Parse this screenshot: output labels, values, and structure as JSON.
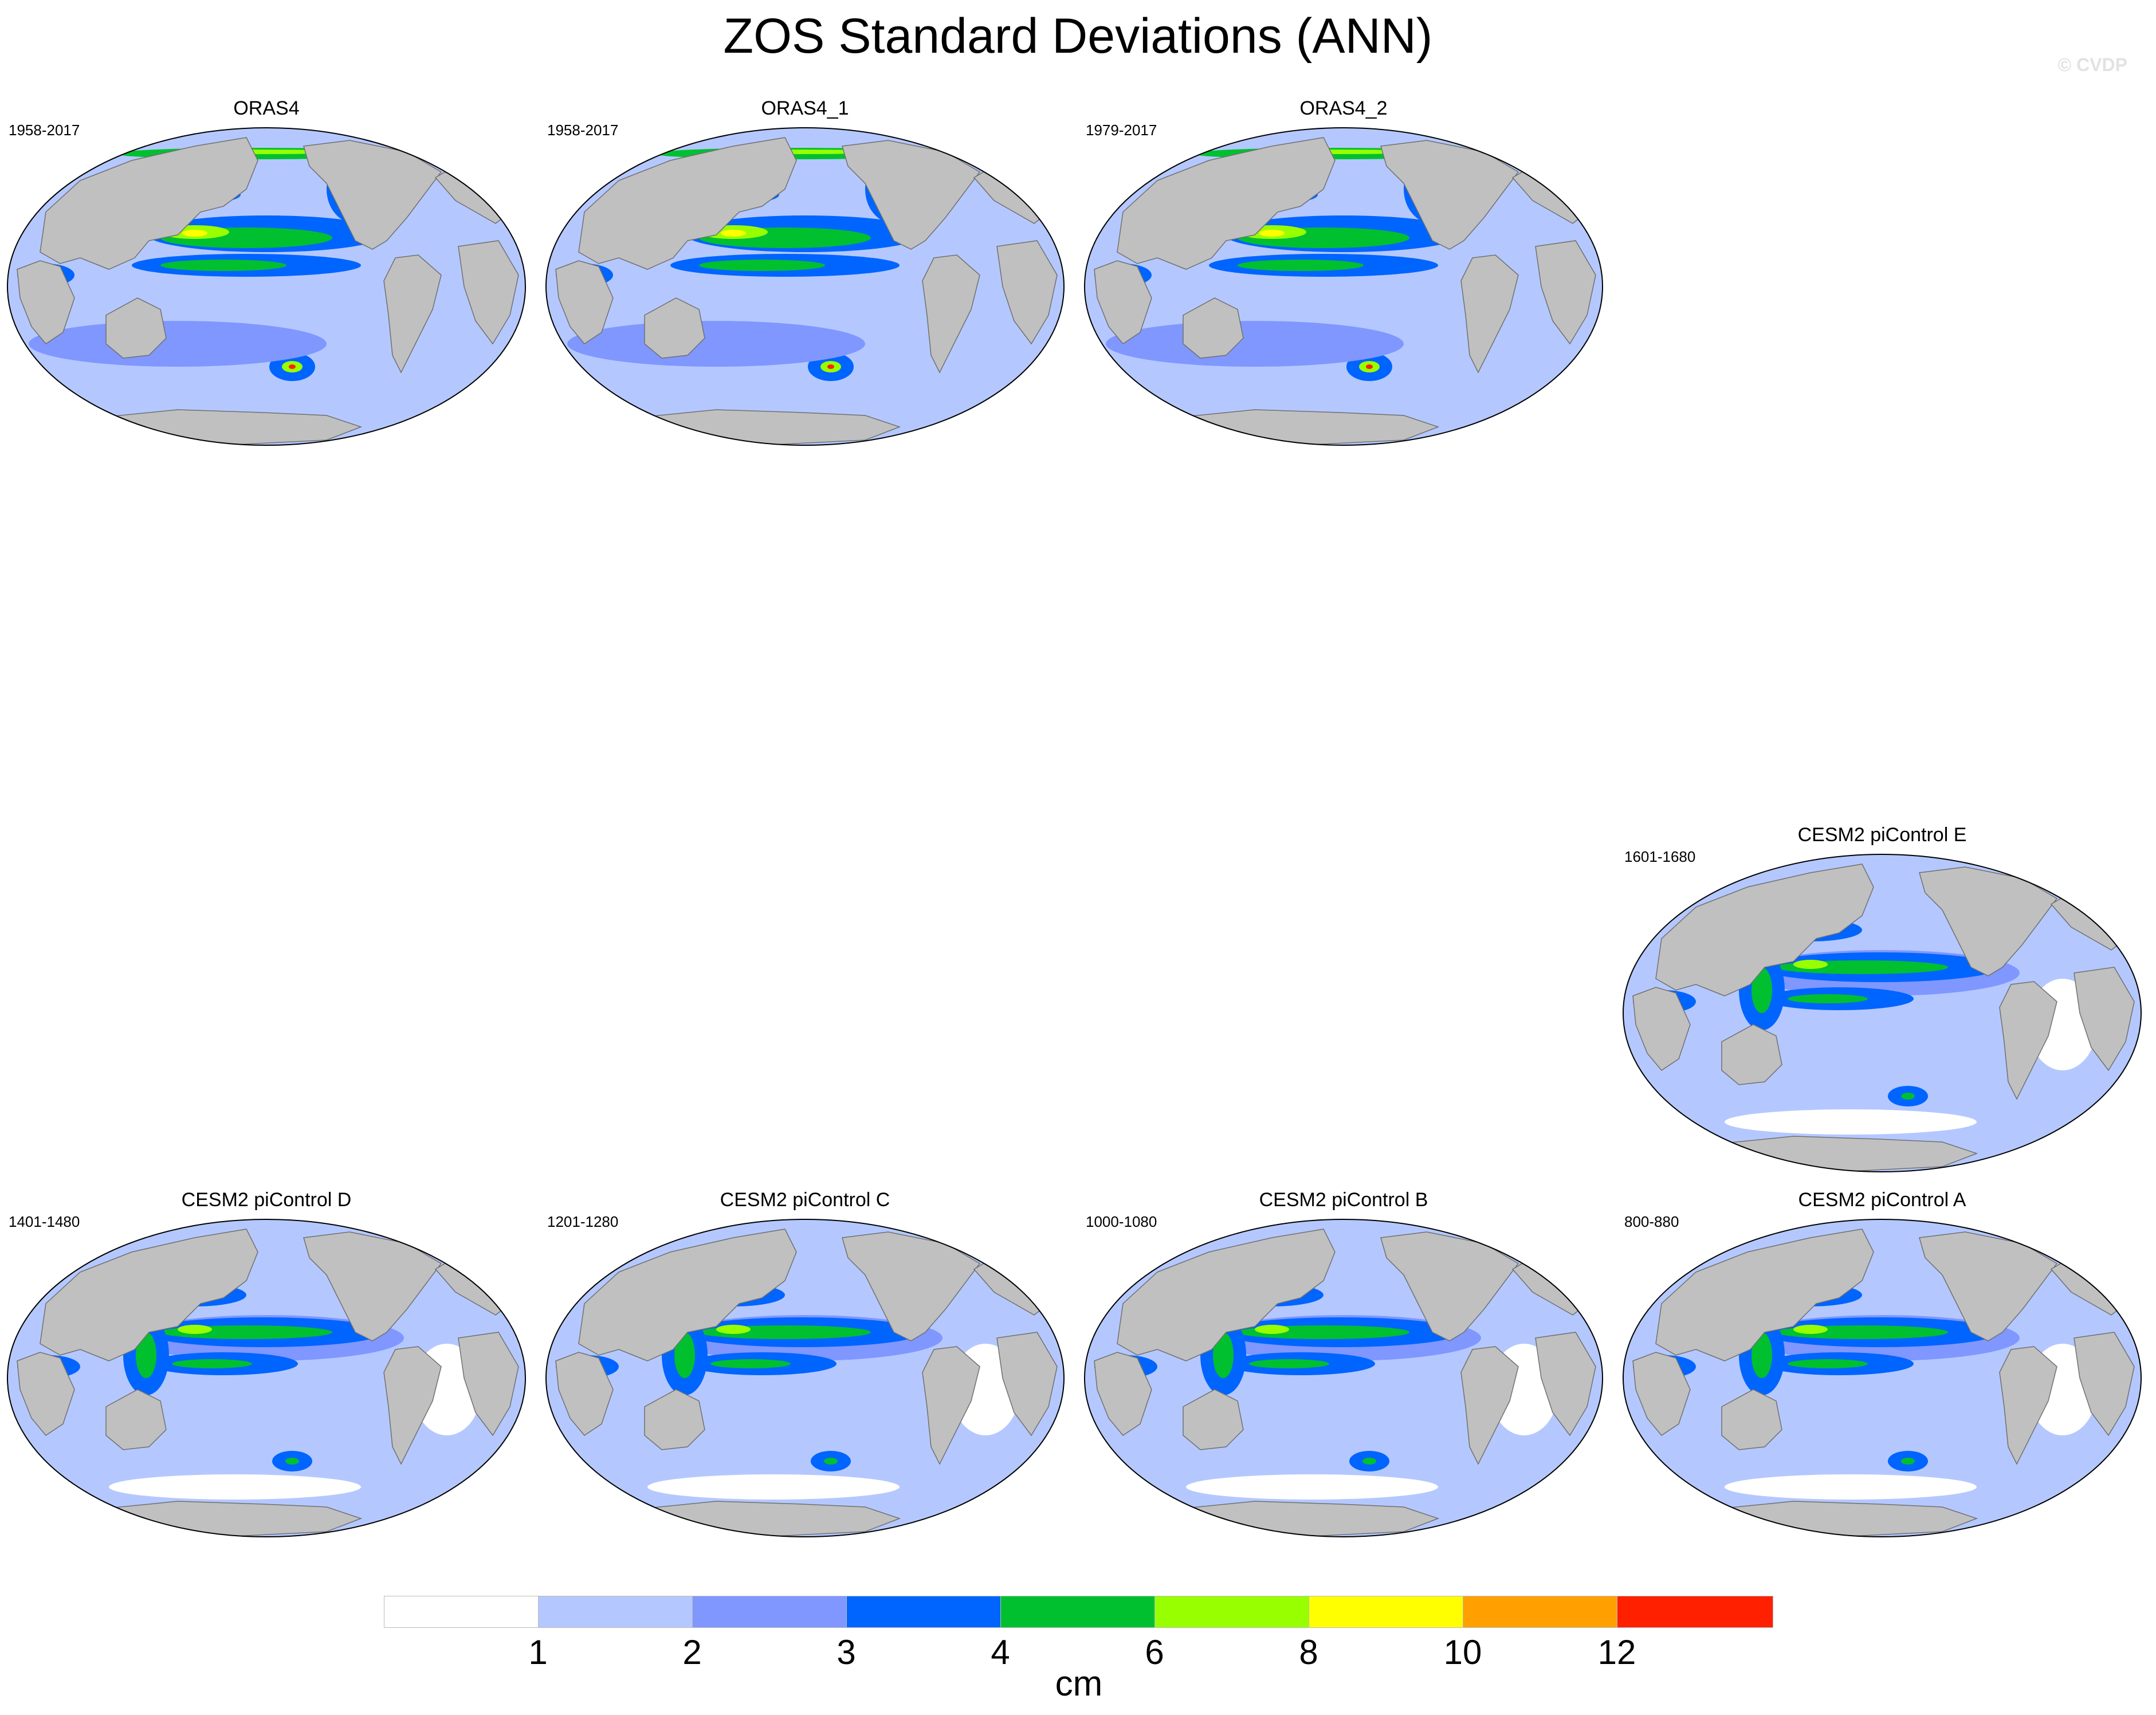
{
  "figure": {
    "title": "ZOS Standard Deviations (ANN)",
    "watermark": "© CVDP"
  },
  "colors": {
    "land": "#c0c0c0",
    "ocean_base": "#b4c8ff"
  },
  "panels": [
    {
      "title": "ORAS4",
      "period": "1958-2017",
      "variant": "obs"
    },
    {
      "title": "ORAS4_1",
      "period": "1958-2017",
      "variant": "obs"
    },
    {
      "title": "ORAS4_2",
      "period": "1979-2017",
      "variant": "obs"
    },
    {
      "title": "CESM2 piControl E",
      "period": "1601-1680",
      "variant": "model"
    },
    {
      "title": "CESM2 piControl D",
      "period": "1401-1480",
      "variant": "model"
    },
    {
      "title": "CESM2 piControl C",
      "period": "1201-1280",
      "variant": "model"
    },
    {
      "title": "CESM2 piControl B",
      "period": "1000-1080",
      "variant": "model"
    },
    {
      "title": "CESM2 piControl A",
      "period": "800-880",
      "variant": "model"
    }
  ],
  "colorbar": {
    "units": "cm",
    "labels": [
      "1",
      "2",
      "3",
      "4",
      "6",
      "8",
      "10",
      "12"
    ],
    "colors": [
      "#ffffff",
      "#b4c8ff",
      "#7f97ff",
      "#0064ff",
      "#00c030",
      "#98ff00",
      "#ffff00",
      "#ffa000",
      "#ff2000"
    ]
  }
}
